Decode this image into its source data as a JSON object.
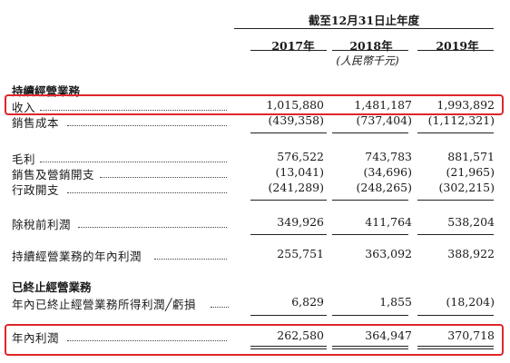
{
  "header": {
    "period": "截至12月31日止年度",
    "years": [
      "2017年",
      "2018年",
      "2019年"
    ],
    "unit": "(人民幣千元)"
  },
  "sections": {
    "continuing": "持續經營業務",
    "discontinued": "已終止經營業務"
  },
  "rows": [
    {
      "label": "收入",
      "values": [
        "1,015,880",
        "1,481,187",
        "1,993,892"
      ]
    },
    {
      "label": "銷售成本",
      "values": [
        "(439,358)",
        "(737,404)",
        "(1,112,321)"
      ]
    },
    {
      "label": "毛利",
      "values": [
        "576,522",
        "743,783",
        "881,571"
      ]
    },
    {
      "label": "銷售及營銷開支",
      "values": [
        "(13,041)",
        "(34,696)",
        "(21,965)"
      ]
    },
    {
      "label": "行政開支",
      "values": [
        "(241,289)",
        "(248,265)",
        "(302,215)"
      ]
    },
    {
      "label": "除稅前利潤",
      "values": [
        "349,926",
        "411,764",
        "538,204"
      ]
    },
    {
      "label": "持續經營業務的年內利潤",
      "values": [
        "255,751",
        "363,092",
        "388,922"
      ]
    },
    {
      "label": "年內已終止經營業務所得利潤╱虧損",
      "values": [
        "6,829",
        "1,855",
        "(18,204)"
      ]
    },
    {
      "label": "年內利潤",
      "values": [
        "262,580",
        "364,947",
        "370,718"
      ]
    }
  ]
}
